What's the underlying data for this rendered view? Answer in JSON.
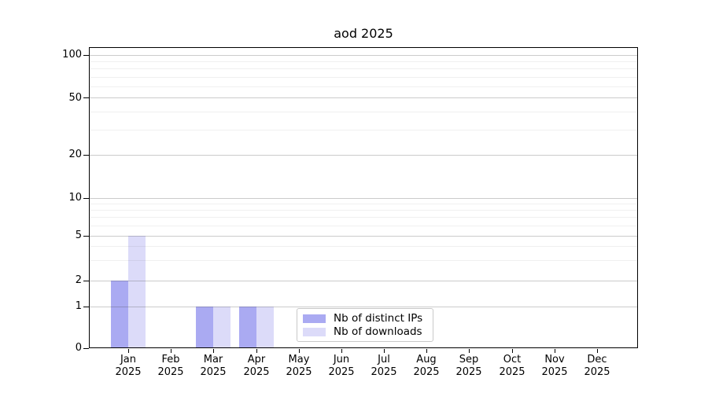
{
  "chart_data": {
    "type": "bar",
    "title": "aod 2025",
    "categories": [
      "Jan",
      "Feb",
      "Mar",
      "Apr",
      "May",
      "Jun",
      "Jul",
      "Aug",
      "Sep",
      "Oct",
      "Nov",
      "Dec"
    ],
    "x_tick_year": "2025",
    "series": [
      {
        "name": "Nb of distinct IPs",
        "color": "#aaaaf2",
        "values": [
          2,
          0,
          1,
          1,
          0,
          0,
          0,
          0,
          0,
          0,
          0,
          0
        ]
      },
      {
        "name": "Nb of downloads",
        "color": "#dcdbf9",
        "values": [
          5,
          0,
          1,
          1,
          0,
          0,
          0,
          0,
          0,
          0,
          0,
          0
        ]
      }
    ],
    "y_axis": {
      "scale": "symlog",
      "tick_values": [
        0,
        1,
        2,
        5,
        10,
        20,
        50,
        100
      ],
      "minor_tick_values": [
        3,
        4,
        6,
        7,
        8,
        9,
        30,
        40,
        60,
        70,
        80,
        90
      ],
      "range": [
        0,
        110
      ]
    },
    "grid": "horizontal",
    "legend_position": "lower center"
  }
}
